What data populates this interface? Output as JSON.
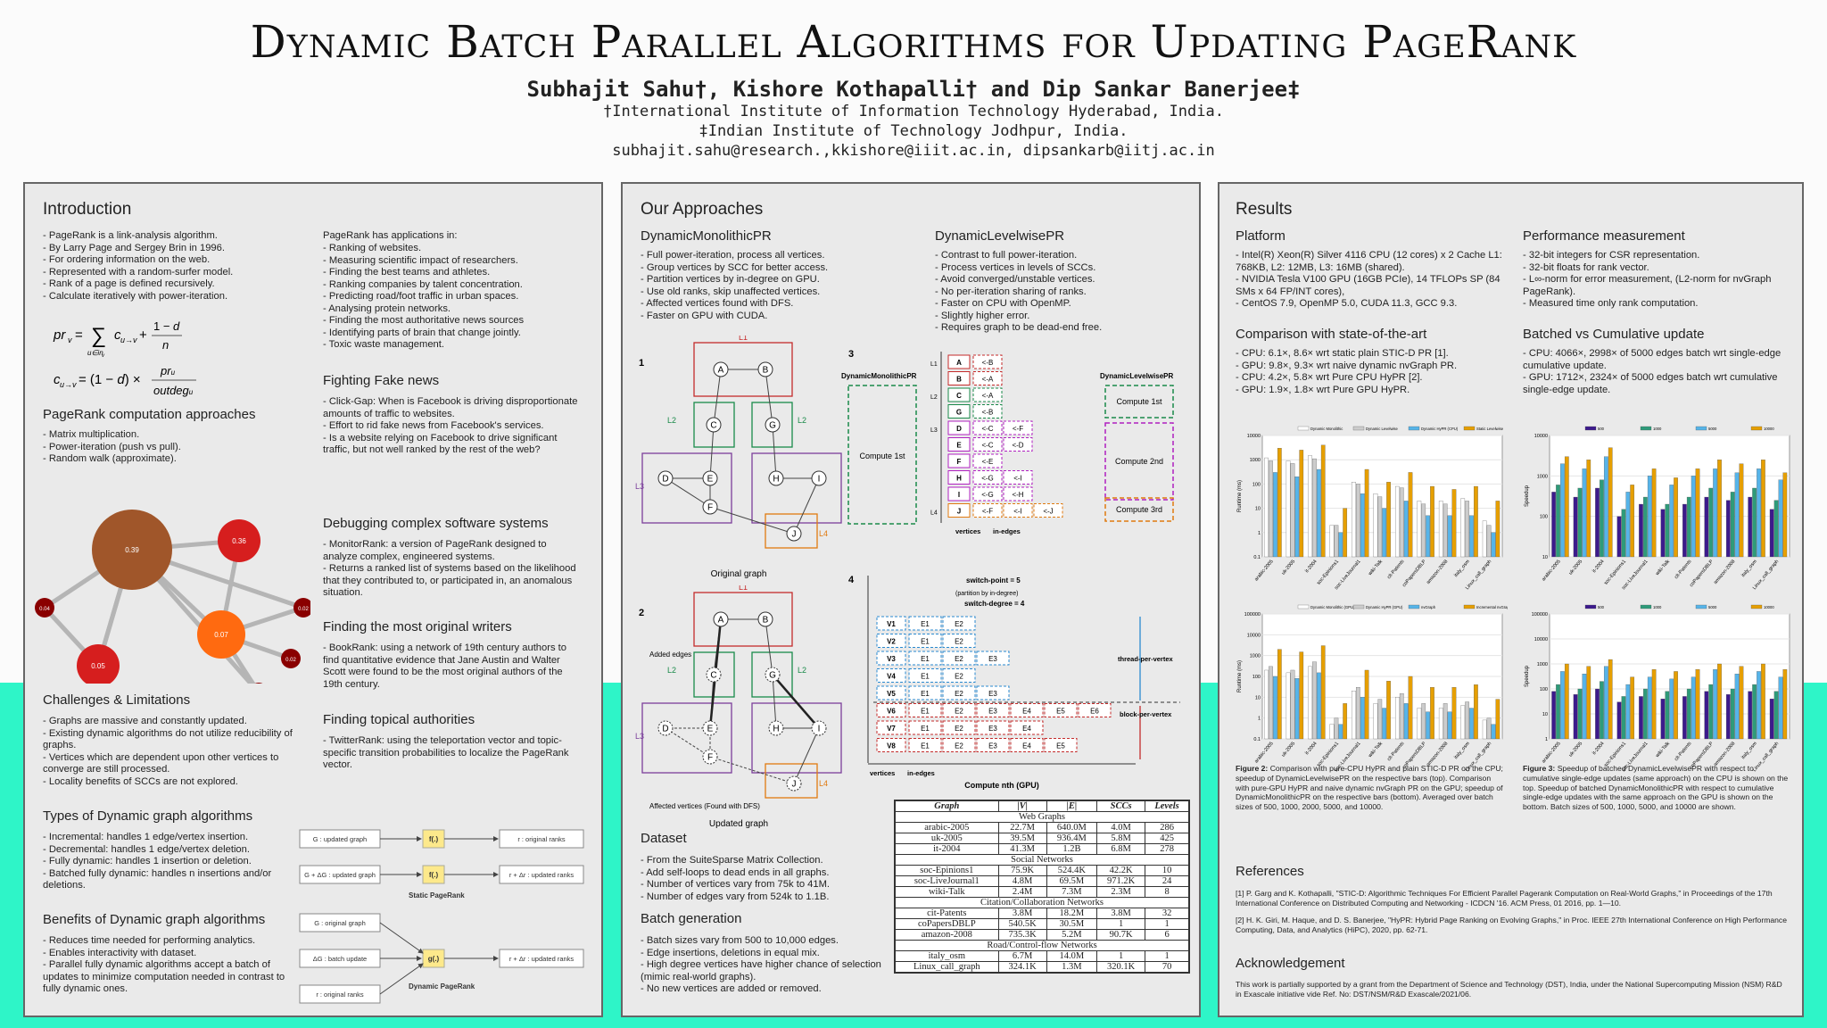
{
  "header": {
    "title": "Dynamic Batch Parallel Algorithms for Updating PageRank",
    "authors": "Subhajit Sahu†, Kishore Kothapalli† and Dip Sankar Banerjee‡",
    "aff1": "†International Institute of Information Technology Hyderabad, India.",
    "aff2": "‡Indian Institute of Technology Jodhpur, India.",
    "emails": "subhajit.sahu@research.,kkishore@iiit.ac.in, dipsankarb@iitj.ac.in"
  },
  "col1": {
    "intro_title": "Introduction",
    "intro_items": [
      "PageRank is a link-analysis algorithm.",
      "By Larry Page and Sergey Brin in 1996.",
      "For ordering information on the web.",
      "Represented with a random-surfer model.",
      "Rank of a page is defined recursively.",
      "Calculate iteratively with power-iteration."
    ],
    "apps_head": "PageRank has applications in:",
    "apps_items": [
      "Ranking of websites.",
      "Measuring scientific impact of researchers.",
      "Finding the best teams and athletes.",
      "Ranking companies by talent concentration.",
      "Predicting road/foot traffic in urban spaces.",
      "Analysing protein networks.",
      "Finding the most authoritative news sources",
      "Identifying parts of brain that change jointly.",
      "Toxic waste management."
    ],
    "approaches_title": "PageRank computation approaches",
    "approaches_items": [
      "Matrix multiplication.",
      "Power-iteration (push vs pull).",
      "Random walk (approximate)."
    ],
    "node_labels": [
      "0.39",
      "0.36",
      "0.07",
      "0.05",
      "0.04",
      "0.02",
      "0.02",
      "0.02"
    ],
    "fake_title": "Fighting Fake news",
    "fake_items": [
      "Click-Gap: When is Facebook is driving disproportionate amounts of traffic to websites.",
      "Effort to rid fake news from Facebook's services.",
      "Is a website relying on Facebook to drive significant traffic, but not well ranked by the rest of the web?"
    ],
    "debug_title": "Debugging complex software systems",
    "debug_items": [
      "MonitorRank: a version of PageRank designed to analyze complex, engineered systems.",
      "Returns a ranked list of systems based on the likelihood that they contributed to, or participated in, an anomalous situation."
    ],
    "writers_title": "Finding the most original writers",
    "writers_items": [
      "BookRank: using a network of 19th century authors to find quantitative evidence that Jane Austin and Walter Scott were found to be the most original authors of the 19th century."
    ],
    "topical_title": "Finding topical authorities",
    "topical_items": [
      "TwitterRank: using the teleportation vector and topic-specific transition probabilities to localize the PageRank vector."
    ],
    "challenges_title": "Challenges & Limitations",
    "challenges_items": [
      "Graphs are massive and constantly updated.",
      "Existing dynamic algorithms do not utilize reducibility of graphs.",
      "Vertices which are dependent upon other vertices to converge are still processed.",
      "Locality benefits of SCCs are not explored."
    ],
    "types_title": "Types of Dynamic graph algorithms",
    "types_items": [
      "Incremental: handles 1 edge/vertex insertion.",
      "Decremental: handles 1 edge/vertex deletion.",
      "Fully dynamic: handles 1 insertion or deletion.",
      "Batched fully dynamic: handles n insertions and/or deletions."
    ],
    "benefits_title": "Benefits of Dynamic graph algorithms",
    "benefits_items": [
      "Reduces time needed for performing analytics.",
      "Enables interactivity with dataset.",
      "Parallel fully dynamic algorithms accept a batch of updates to minimize computation needed in contrast to fully dynamic ones."
    ],
    "static_diag": {
      "in1": "G : updated graph",
      "in2": "G + ΔG : updated graph",
      "fn": "f(.)",
      "out1": "r : original ranks",
      "out2": "r + Δr : updated ranks",
      "caption": "Static PageRank"
    },
    "dyn_diag": {
      "in1": "G : original graph",
      "in2": "ΔG : batch update",
      "in3": "r : original ranks",
      "fn": "g(.)",
      "out": "r + Δr : updated ranks",
      "caption": "Dynamic PageRank"
    }
  },
  "col2": {
    "title": "Our Approaches",
    "mono_title": "DynamicMonolithicPR",
    "mono_items": [
      "Full power-iteration, process all vertices.",
      "Group vertices by SCC for better access.",
      "Partition vertices by in-degree on GPU.",
      "Use old ranks, skip unaffected vertices.",
      "Affected vertices found with DFS.",
      "Faster on GPU with CUDA."
    ],
    "lev_title": "DynamicLevelwisePR",
    "lev_items": [
      "Contrast to full power-iteration.",
      "Process vertices in levels of SCCs.",
      "Avoid converged/unstable vertices.",
      "No per-iteration sharing of ranks.",
      "Faster on CPU with OpenMP.",
      "Slightly higher error.",
      "Requires graph to be dead-end free."
    ],
    "fig1": {
      "num": "1",
      "caption": "Original graph",
      "nodes": [
        "A",
        "B",
        "C",
        "G",
        "D",
        "E",
        "H",
        "I",
        "F",
        "J"
      ],
      "levels": [
        "L1",
        "L2",
        "L2",
        "L3",
        "L3",
        "L4"
      ]
    },
    "fig2": {
      "num": "2",
      "caption": "Updated graph",
      "added": "Added edges",
      "affected": "Affected vertices (Found with DFS)"
    },
    "fig3": {
      "num": "3",
      "mono": "DynamicMonolithicPR",
      "lev": "DynamicLevelwisePR",
      "compute_1st": "Compute 1st",
      "compute_2nd": "Compute 2nd",
      "compute_3rd": "Compute 3rd",
      "vertices": "vertices",
      "in_edges": "in-edges",
      "rows": [
        [
          "L1",
          "A",
          "<-B",
          ""
        ],
        [
          "",
          "B",
          "<-A",
          ""
        ],
        [
          "L2",
          "C",
          "<-A",
          ""
        ],
        [
          "",
          "G",
          "<-B",
          ""
        ],
        [
          "L3",
          "D",
          "<-C",
          "<-F"
        ],
        [
          "",
          "E",
          "<-C",
          "<-D"
        ],
        [
          "",
          "F",
          "<-E",
          ""
        ],
        [
          "",
          "H",
          "<-G",
          "<-I"
        ],
        [
          "",
          "I",
          "<-G",
          "<-H"
        ],
        [
          "L4",
          "J",
          "<-F",
          "<-I",
          "<-J"
        ]
      ]
    },
    "fig4": {
      "num": "4",
      "switch_point": "switch-point = 5",
      "partition": "(partition by in-degree)",
      "switch_degree": "switch-degree = 4",
      "thread": "thread-per-vertex",
      "block": "block-per-vertex",
      "vertices": "vertices",
      "in_edges": "in-edges",
      "caption": "Compute nth (GPU)",
      "rows": [
        [
          "V1",
          "E1",
          "E2"
        ],
        [
          "V2",
          "E1",
          "E2"
        ],
        [
          "V3",
          "E1",
          "E2",
          "E3"
        ],
        [
          "V4",
          "E1",
          "E2"
        ],
        [
          "V5",
          "E1",
          "E2",
          "E3"
        ],
        [
          "V6",
          "E1",
          "E2",
          "E3",
          "E4",
          "E5",
          "E6"
        ],
        [
          "V7",
          "E1",
          "E2",
          "E3",
          "E4"
        ],
        [
          "V8",
          "E1",
          "E2",
          "E3",
          "E4",
          "E5"
        ]
      ]
    },
    "dataset_title": "Dataset",
    "dataset_items": [
      "From the SuiteSparse Matrix Collection.",
      "Add self-loops to dead ends in all graphs.",
      "Number of vertices vary from 75k to 41M.",
      "Number of edges vary from 524k to 1.1B."
    ],
    "batch_title": "Batch generation",
    "batch_items": [
      "Batch sizes vary from 500 to 10,000 edges.",
      "Edge insertions, deletions in equal mix.",
      "High degree vertices have higher chance of selection (mimic real-world graphs).",
      "No new vertices are added or removed."
    ],
    "table": {
      "headers": [
        "Graph",
        "|V|",
        "|E|",
        "SCCs",
        "Levels"
      ],
      "groups": [
        {
          "name": "Web Graphs",
          "rows": [
            [
              "arabic-2005",
              "22.7M",
              "640.0M",
              "4.0M",
              "286"
            ],
            [
              "uk-2005",
              "39.5M",
              "936.4M",
              "5.8M",
              "425"
            ],
            [
              "it-2004",
              "41.3M",
              "1.2B",
              "6.8M",
              "278"
            ]
          ]
        },
        {
          "name": "Social Networks",
          "rows": [
            [
              "soc-Epinions1",
              "75.9K",
              "524.4K",
              "42.2K",
              "10"
            ],
            [
              "soc-LiveJournal1",
              "4.8M",
              "69.5M",
              "971.2K",
              "24"
            ],
            [
              "wiki-Talk",
              "2.4M",
              "7.3M",
              "2.3M",
              "8"
            ]
          ]
        },
        {
          "name": "Citation/Collaboration Networks",
          "rows": [
            [
              "cit-Patents",
              "3.8M",
              "18.2M",
              "3.8M",
              "32"
            ],
            [
              "coPapersDBLP",
              "540.5K",
              "30.5M",
              "1",
              "1"
            ],
            [
              "amazon-2008",
              "735.3K",
              "5.2M",
              "90.7K",
              "6"
            ]
          ]
        },
        {
          "name": "Road/Control-flow Networks",
          "rows": [
            [
              "italy_osm",
              "6.7M",
              "14.0M",
              "1",
              "1"
            ],
            [
              "Linux_call_graph",
              "324.1K",
              "1.3M",
              "320.1K",
              "70"
            ]
          ]
        }
      ]
    }
  },
  "col3": {
    "title": "Results",
    "platform_title": "Platform",
    "platform_items": [
      "Intel(R) Xeon(R) Silver 4116 CPU (12 cores) x 2 Cache L1: 768KB, L2: 12MB, L3: 16MB (shared).",
      "NVIDIA Tesla V100 GPU (16GB PCIe), 14 TFLOPs SP (84 SMs x 64 FP/INT cores),",
      "CentOS 7.9, OpenMP 5.0, CUDA 11.3, GCC 9.3."
    ],
    "perf_title": "Performance measurement",
    "perf_items": [
      "32-bit integers for CSR representation.",
      "32-bit floats for rank vector.",
      "L∞-norm for error measurement, (L2-norm for nvGraph PageRank).",
      "Measured time only rank computation."
    ],
    "sota_title": "Comparison with state-of-the-art",
    "sota_items": [
      "CPU: 6.1×, 8.6× wrt static plain STIC-D PR [1].",
      "GPU: 9.8×, 9.3× wrt naive dynamic nvGraph PR.",
      "CPU: 4.2×, 5.8× wrt Pure CPU HyPR [2].",
      "GPU: 1.9×, 1.8× wrt Pure GPU HyPR."
    ],
    "batch_title": "Batched vs Cumulative update",
    "batch_items": [
      "CPU: 4066×, 2998× of 5000 edges batch wrt single-edge cumulative update.",
      "GPU: 1712×, 2324× of 5000 edges batch wrt cumulative single-edge update."
    ],
    "fig2_caption_bold": "Figure 2:",
    "fig2_caption": "Comparison with pure-CPU HyPR and plain STIC-D PR on the CPU; speedup of DynamicLevelwisePR on the respective bars (top). Comparison with pure-GPU HyPR and naive dynamic nvGraph PR on the GPU; speedup of DynamicMonolithicPR on the respective bars (bottom). Averaged over batch sizes of 500, 1000, 2000, 5000, and 10000.",
    "fig3_caption_bold": "Figure 3:",
    "fig3_caption": "Speedup of batched DynamicLevelwisePR with respect to cumulative single-edge updates (same approach) on the CPU is shown on the top. Speedup of batched DynamicMonolithicPR with respect to cumulative single-edge updates with the same approach on the GPU is shown on the bottom. Batch sizes of 500, 1000, 5000, and 10000 are shown.",
    "refs_title": "References",
    "ref1": "[1] P. Garg and K. Kothapalli, \"STIC-D: Algorithmic Techniques For Efficient Parallel Pagerank Computation on Real-World Graphs,\" in Proceedings of the 17th International Conference on Distributed Computing and Networking - ICDCN '16. ACM Press, 01 2016, pp. 1—10.",
    "ref2": "[2] H. K. Giri, M. Haque, and D. S. Banerjee, \"HyPR: Hybrid Page Ranking on Evolving Graphs,\" in Proc. IEEE 27th International Conference on High Performance Computing, Data, and Analytics (HiPC), 2020, pp. 62-71.",
    "ack_title": "Acknowledgement",
    "ack": "This work is partially supported by a grant from the Department of Science and Technology (DST), India, under the National Supercomputing Mission (NSM) R&D in Exascale initiative vide Ref. No: DST/NSM/R&D Exascale/2021/06."
  },
  "chart_data": [
    {
      "type": "bar",
      "ylabel": "Runtime (ms)",
      "yscale": "log",
      "ylim": [
        0.1,
        10000
      ],
      "categories": [
        "arabic-2005",
        "uk-2005",
        "it-2004",
        "soc-Epinions1",
        "soc-LiveJournal1",
        "wiki-Talk",
        "cit-Patents",
        "coPapersDBLP",
        "amazon-2008",
        "italy_osm",
        "Linux_call_graph"
      ],
      "series": [
        {
          "name": "Dynamic Monolithic",
          "values": [
            1200,
            900,
            1500,
            2,
            120,
            40,
            80,
            20,
            20,
            25,
            3
          ]
        },
        {
          "name": "Dynamic Levelwise",
          "values": [
            900,
            700,
            1100,
            2,
            100,
            30,
            70,
            15,
            15,
            20,
            2
          ]
        },
        {
          "name": "Dynamic HyPR (CPU)",
          "values": [
            300,
            200,
            400,
            1,
            40,
            10,
            20,
            5,
            5,
            5,
            1
          ]
        },
        {
          "name": "Static Levelwise",
          "values": [
            3000,
            2500,
            4000,
            10,
            400,
            120,
            300,
            80,
            60,
            80,
            20
          ]
        }
      ],
      "colors": [
        "#ffffff",
        "#cccccc",
        "#56b4e9",
        "#e69f00"
      ]
    },
    {
      "type": "bar",
      "ylabel": "Speedup",
      "yscale": "log",
      "ylim": [
        10,
        10000
      ],
      "categories": [
        "arabic-2005",
        "uk-2005",
        "it-2004",
        "soc-Epinions1",
        "soc-LiveJournal1",
        "wiki-Talk",
        "cit-Patents",
        "coPapersDBLP",
        "amazon-2008",
        "italy_osm",
        "Linux_call_graph"
      ],
      "series": [
        {
          "name": "500",
          "values": [
            400,
            300,
            500,
            100,
            200,
            150,
            200,
            300,
            250,
            300,
            150
          ]
        },
        {
          "name": "1000",
          "values": [
            600,
            500,
            800,
            150,
            300,
            200,
            300,
            500,
            400,
            500,
            250
          ]
        },
        {
          "name": "5000",
          "values": [
            2000,
            1500,
            3000,
            400,
            1000,
            600,
            1000,
            1500,
            1200,
            1500,
            800
          ]
        },
        {
          "name": "10000",
          "values": [
            3000,
            2500,
            5000,
            600,
            1500,
            900,
            1500,
            2500,
            2000,
            2500,
            1200
          ]
        }
      ],
      "colors": [
        "#3c1a8c",
        "#2e9b7a",
        "#56b4e9",
        "#e69f00"
      ]
    },
    {
      "type": "bar",
      "ylabel": "Runtime (ms)",
      "yscale": "log",
      "ylim": [
        0.1,
        100000
      ],
      "categories": [
        "arabic-2005",
        "uk-2005",
        "it-2004",
        "soc-Epinions1",
        "soc-LiveJournal1",
        "wiki-Talk",
        "cit-Patents",
        "coPapersDBLP",
        "amazon-2008",
        "italy_osm",
        "Linux_call_graph"
      ],
      "series": [
        {
          "name": "Dynamic Monolithic (GPU)",
          "values": [
            200,
            150,
            300,
            0.5,
            20,
            5,
            10,
            3,
            3,
            4,
            0.8
          ]
        },
        {
          "name": "Dynamic HyPR (GPU)",
          "values": [
            300,
            200,
            500,
            1,
            30,
            8,
            15,
            5,
            5,
            6,
            1
          ]
        },
        {
          "name": "nvGraph",
          "values": [
            100,
            80,
            150,
            0.5,
            10,
            3,
            5,
            2,
            2,
            3,
            0.5
          ]
        },
        {
          "name": "Incremental nvGraph",
          "values": [
            2000,
            1500,
            3000,
            5,
            200,
            60,
            100,
            30,
            30,
            40,
            8
          ]
        }
      ],
      "colors": [
        "#ffffff",
        "#cccccc",
        "#56b4e9",
        "#e69f00"
      ]
    },
    {
      "type": "bar",
      "ylabel": "Speedup",
      "yscale": "log",
      "ylim": [
        1,
        100000
      ],
      "categories": [
        "arabic-2005",
        "uk-2005",
        "it-2004",
        "soc-Epinions1",
        "soc-LiveJournal1",
        "wiki-Talk",
        "cit-Patents",
        "coPapersDBLP",
        "amazon-2008",
        "italy_osm",
        "Linux_call_graph"
      ],
      "series": [
        {
          "name": "500",
          "values": [
            80,
            60,
            100,
            30,
            50,
            40,
            50,
            80,
            60,
            80,
            40
          ]
        },
        {
          "name": "1000",
          "values": [
            150,
            100,
            200,
            50,
            100,
            80,
            100,
            150,
            100,
            150,
            80
          ]
        },
        {
          "name": "5000",
          "values": [
            500,
            400,
            800,
            150,
            300,
            250,
            300,
            600,
            400,
            500,
            300
          ]
        },
        {
          "name": "10000",
          "values": [
            1000,
            800,
            1500,
            300,
            600,
            500,
            600,
            1000,
            800,
            1000,
            600
          ]
        }
      ],
      "colors": [
        "#3c1a8c",
        "#2e9b7a",
        "#56b4e9",
        "#e69f00"
      ]
    }
  ]
}
